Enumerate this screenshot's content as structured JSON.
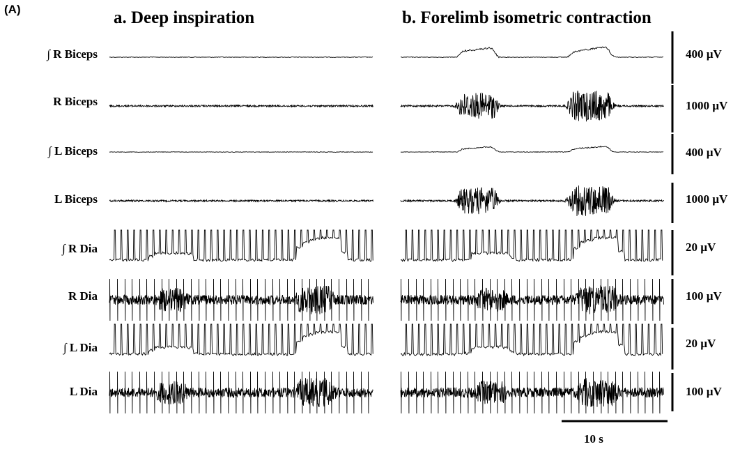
{
  "panel_label": "(A)",
  "columns": [
    {
      "title": "a. Deep inspiration",
      "condition": "deep_inspiration"
    },
    {
      "title": "b. Forelimb isometric contraction",
      "condition": "forelimb_contraction"
    }
  ],
  "rows": [
    {
      "label": "∫ R Biceps",
      "kind": "integrated_biceps",
      "scale": "400 µV"
    },
    {
      "label": "R Biceps",
      "kind": "raw_biceps",
      "scale": "1000 µV"
    },
    {
      "label": "∫ L Biceps",
      "kind": "integrated_biceps",
      "scale": "400 µV"
    },
    {
      "label": "L Biceps",
      "kind": "raw_biceps",
      "scale": "1000 µV"
    },
    {
      "label": "∫ R Dia",
      "kind": "integrated_dia",
      "scale": "20 µV"
    },
    {
      "label": "R Dia",
      "kind": "raw_dia",
      "scale": "100 µV"
    },
    {
      "label": "∫ L Dia",
      "kind": "integrated_dia",
      "scale": "20 µV"
    },
    {
      "label": "L Dia",
      "kind": "raw_dia",
      "scale": "100 µV"
    }
  ],
  "time_scale": "10 s",
  "colors": {
    "trace": "#000000",
    "background": "#ffffff"
  }
}
